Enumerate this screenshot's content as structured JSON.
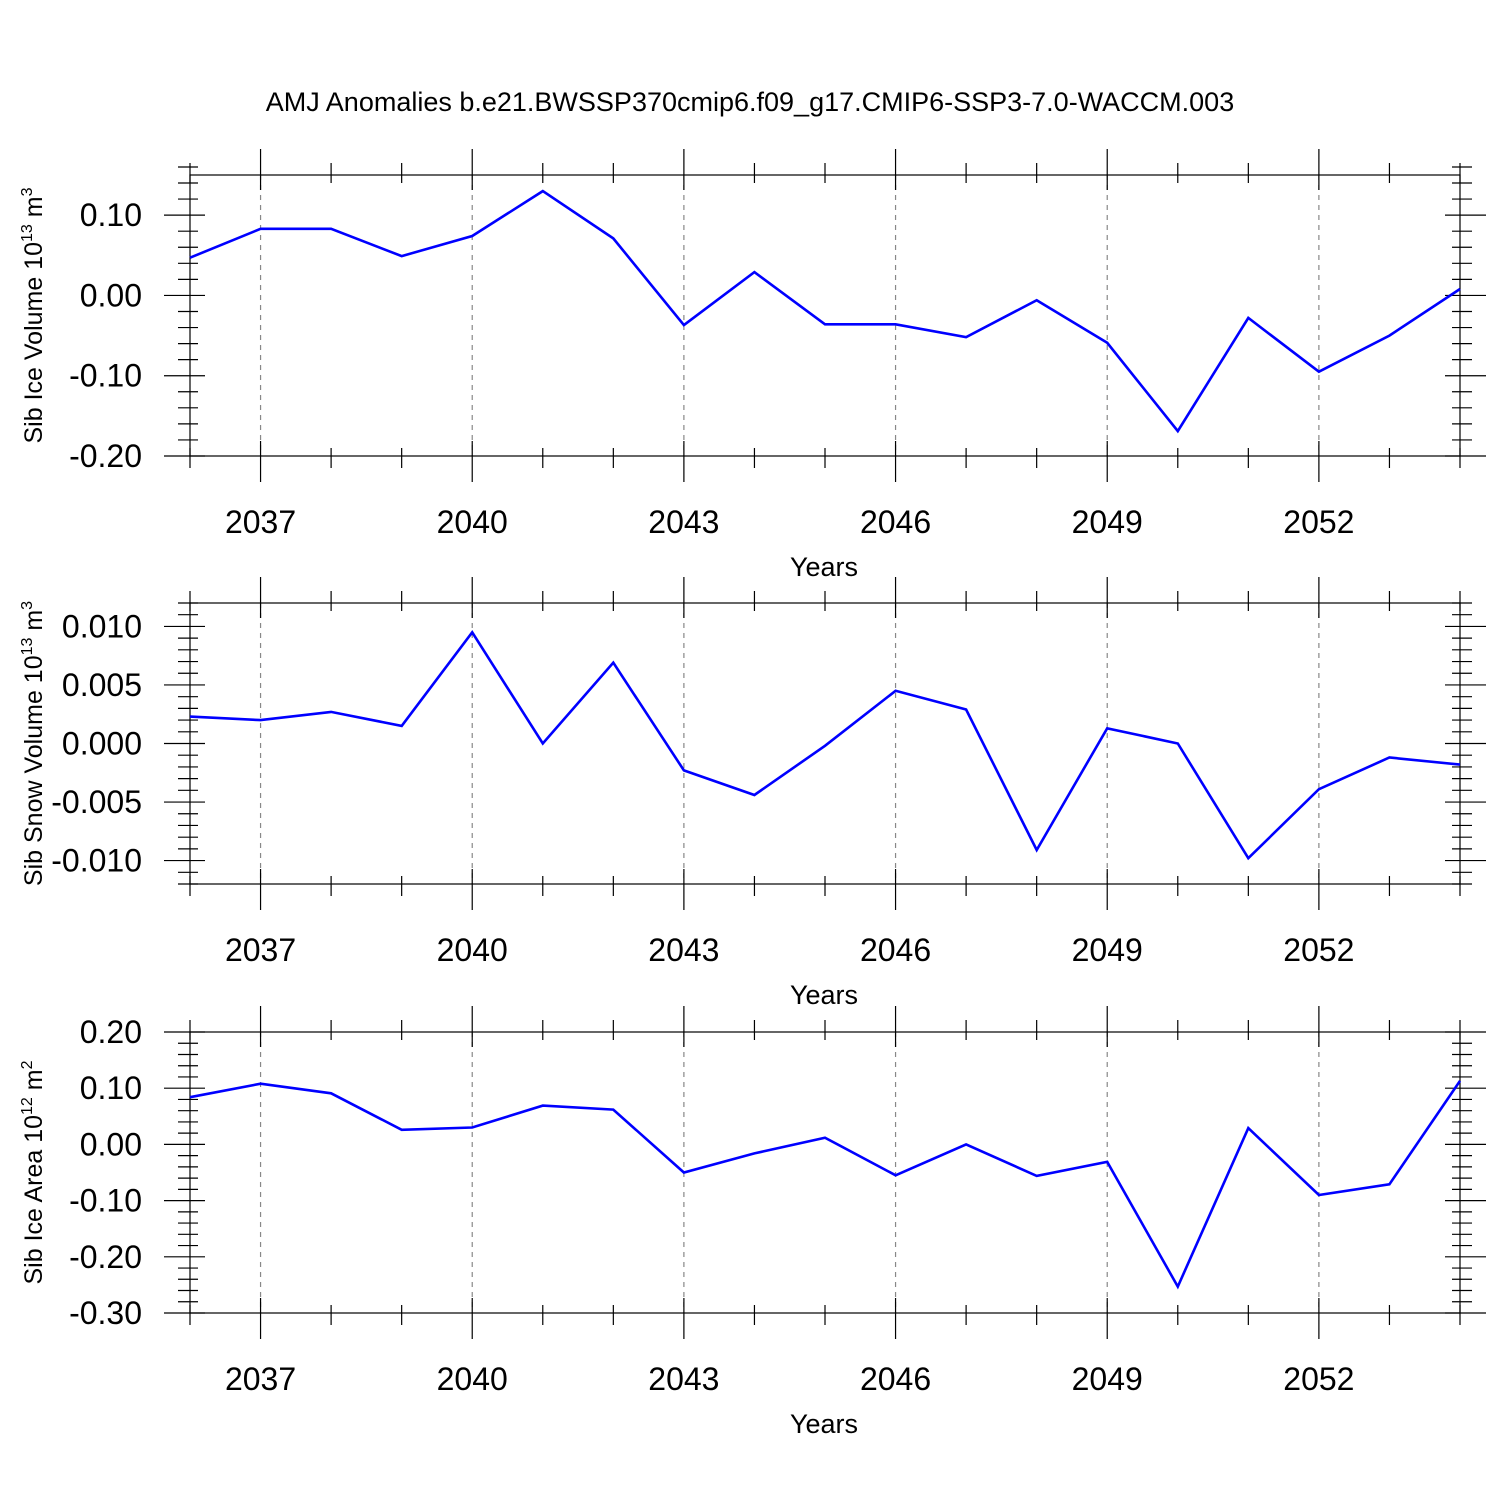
{
  "title": "AMJ Anomalies b.e21.BWSSP370cmip6.f09_g17.CMIP6-SSP3-7.0-WACCM.003",
  "colors": {
    "line": "#0000ff",
    "frame": "#000000",
    "grid": "#888888"
  },
  "chart_data": [
    {
      "type": "line",
      "ylabel": "Sib Ice Volume 10",
      "ylabel_exponent": "13",
      "ylabel_unit": " m",
      "ylabel_unit_exponent": "3",
      "xlabel": "Years",
      "xlim": [
        2036,
        2054
      ],
      "ylim": [
        -0.2,
        0.15
      ],
      "xticks": [
        2037,
        2040,
        2043,
        2046,
        2049,
        2052
      ],
      "xtick_labels": [
        "2037",
        "2040",
        "2043",
        "2046",
        "2049",
        "2052"
      ],
      "yticks": [
        -0.2,
        -0.1,
        0.0,
        0.1
      ],
      "ytick_labels": [
        "-0.20",
        "-0.10",
        "0.00",
        "0.10"
      ],
      "yminor_step": 0.02,
      "grid": "vertical dashed at major x ticks",
      "x": [
        2036,
        2037,
        2038,
        2039,
        2040,
        2041,
        2042,
        2043,
        2044,
        2045,
        2046,
        2047,
        2048,
        2049,
        2050,
        2051,
        2052,
        2053,
        2054
      ],
      "values": [
        0.047,
        0.083,
        0.083,
        0.049,
        0.074,
        0.13,
        0.071,
        -0.037,
        0.029,
        -0.036,
        -0.036,
        -0.052,
        -0.006,
        -0.059,
        -0.169,
        -0.028,
        -0.095,
        -0.05,
        0.008
      ]
    },
    {
      "type": "line",
      "ylabel": "Sib Snow Volume 10",
      "ylabel_exponent": "13",
      "ylabel_unit": " m",
      "ylabel_unit_exponent": "3",
      "xlabel": "Years",
      "xlim": [
        2036,
        2054
      ],
      "ylim": [
        -0.012,
        0.012
      ],
      "xticks": [
        2037,
        2040,
        2043,
        2046,
        2049,
        2052
      ],
      "xtick_labels": [
        "2037",
        "2040",
        "2043",
        "2046",
        "2049",
        "2052"
      ],
      "yticks": [
        -0.01,
        -0.005,
        0.0,
        0.005,
        0.01
      ],
      "ytick_labels": [
        "-0.010",
        "-0.005",
        "0.000",
        "0.005",
        "0.010"
      ],
      "yminor_step": 0.001,
      "grid": "vertical dashed at major x ticks",
      "x": [
        2036,
        2037,
        2038,
        2039,
        2040,
        2041,
        2042,
        2043,
        2044,
        2045,
        2046,
        2047,
        2048,
        2049,
        2050,
        2051,
        2052,
        2053,
        2054
      ],
      "values": [
        0.0023,
        0.002,
        0.0027,
        0.0015,
        0.0095,
        0.0,
        0.0069,
        -0.0023,
        -0.0044,
        -0.0002,
        0.0045,
        0.0029,
        -0.0091,
        0.0013,
        0.0,
        -0.0098,
        -0.0039,
        -0.0012,
        -0.0018
      ]
    },
    {
      "type": "line",
      "ylabel": "Sib Ice Area 10",
      "ylabel_exponent": "12",
      "ylabel_unit": " m",
      "ylabel_unit_exponent": "2",
      "xlabel": "Years",
      "xlim": [
        2036,
        2054
      ],
      "ylim": [
        -0.3,
        0.2
      ],
      "xticks": [
        2037,
        2040,
        2043,
        2046,
        2049,
        2052
      ],
      "xtick_labels": [
        "2037",
        "2040",
        "2043",
        "2046",
        "2049",
        "2052"
      ],
      "yticks": [
        -0.3,
        -0.2,
        -0.1,
        0.0,
        0.1,
        0.2
      ],
      "ytick_labels": [
        "-0.30",
        "-0.20",
        "-0.10",
        "0.00",
        "0.10",
        "0.20"
      ],
      "yminor_step": 0.02,
      "grid": "vertical dashed at major x ticks",
      "x": [
        2036,
        2037,
        2038,
        2039,
        2040,
        2041,
        2042,
        2043,
        2044,
        2045,
        2046,
        2047,
        2048,
        2049,
        2050,
        2051,
        2052,
        2053,
        2054
      ],
      "values": [
        0.084,
        0.108,
        0.091,
        0.026,
        0.03,
        0.069,
        0.062,
        -0.05,
        -0.016,
        0.012,
        -0.055,
        0.0,
        -0.056,
        -0.031,
        -0.253,
        0.029,
        -0.09,
        -0.071,
        0.113
      ]
    }
  ]
}
